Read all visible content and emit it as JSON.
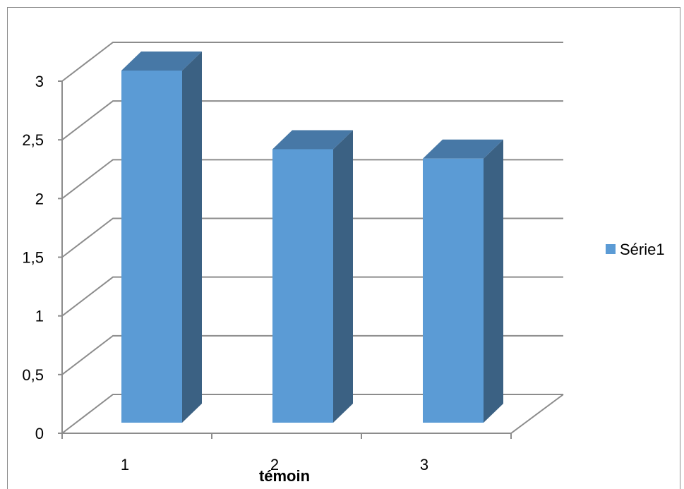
{
  "chart_data": {
    "type": "bar",
    "style": "3d-clustered-column",
    "categories": [
      "1",
      "2",
      "3"
    ],
    "series": [
      {
        "name": "Série1",
        "values": [
          3,
          2.33,
          2.25
        ]
      }
    ],
    "xlabel": "témoin",
    "ylabel": "",
    "ylim": [
      0,
      3
    ],
    "yticks": [
      "0",
      "0,5",
      "1",
      "1,5",
      "2",
      "2,5",
      "3"
    ],
    "grid": true,
    "legend_position": "right",
    "colors": {
      "bar_front": "#5b9bd5",
      "bar_side": "#3b6183",
      "bar_top": "#4778a6",
      "grid": "#8c8c8c"
    }
  }
}
